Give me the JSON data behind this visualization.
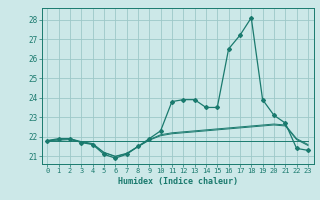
{
  "x": [
    0,
    1,
    2,
    3,
    4,
    5,
    6,
    7,
    8,
    9,
    10,
    11,
    12,
    13,
    14,
    15,
    16,
    17,
    18,
    19,
    20,
    21,
    22,
    23
  ],
  "main_line": [
    21.8,
    21.9,
    21.9,
    21.7,
    21.6,
    21.1,
    20.9,
    21.1,
    21.5,
    21.9,
    22.3,
    23.8,
    23.9,
    23.9,
    23.5,
    23.5,
    26.5,
    27.2,
    28.1,
    23.9,
    23.1,
    22.7,
    21.4,
    21.3
  ],
  "line2": [
    21.8,
    21.85,
    21.9,
    21.75,
    21.65,
    21.2,
    21.0,
    21.15,
    21.5,
    21.85,
    22.1,
    22.2,
    22.25,
    22.3,
    22.35,
    22.4,
    22.45,
    22.5,
    22.55,
    22.6,
    22.65,
    22.6,
    21.9,
    21.6
  ],
  "line3": [
    21.8,
    21.82,
    21.85,
    21.72,
    21.62,
    21.18,
    20.98,
    21.12,
    21.48,
    21.82,
    22.05,
    22.15,
    22.2,
    22.25,
    22.3,
    22.35,
    22.4,
    22.45,
    22.5,
    22.55,
    22.6,
    22.55,
    21.85,
    21.55
  ],
  "line4": [
    21.8,
    21.8,
    21.8,
    21.8,
    21.8,
    21.8,
    21.8,
    21.8,
    21.8,
    21.8,
    21.8,
    21.8,
    21.8,
    21.8,
    21.8,
    21.8,
    21.8,
    21.8,
    21.8,
    21.8,
    21.8,
    21.8,
    21.8,
    21.8
  ],
  "color": "#1a7a6e",
  "bg_color": "#cce8e8",
  "grid_color": "#9dc8c8",
  "ylim": [
    20.6,
    28.6
  ],
  "yticks": [
    21,
    22,
    23,
    24,
    25,
    26,
    27,
    28
  ],
  "xlim": [
    -0.5,
    23.5
  ],
  "xticks": [
    0,
    1,
    2,
    3,
    4,
    5,
    6,
    7,
    8,
    9,
    10,
    11,
    12,
    13,
    14,
    15,
    16,
    17,
    18,
    19,
    20,
    21,
    22,
    23
  ],
  "xlabel": "Humidex (Indice chaleur)"
}
